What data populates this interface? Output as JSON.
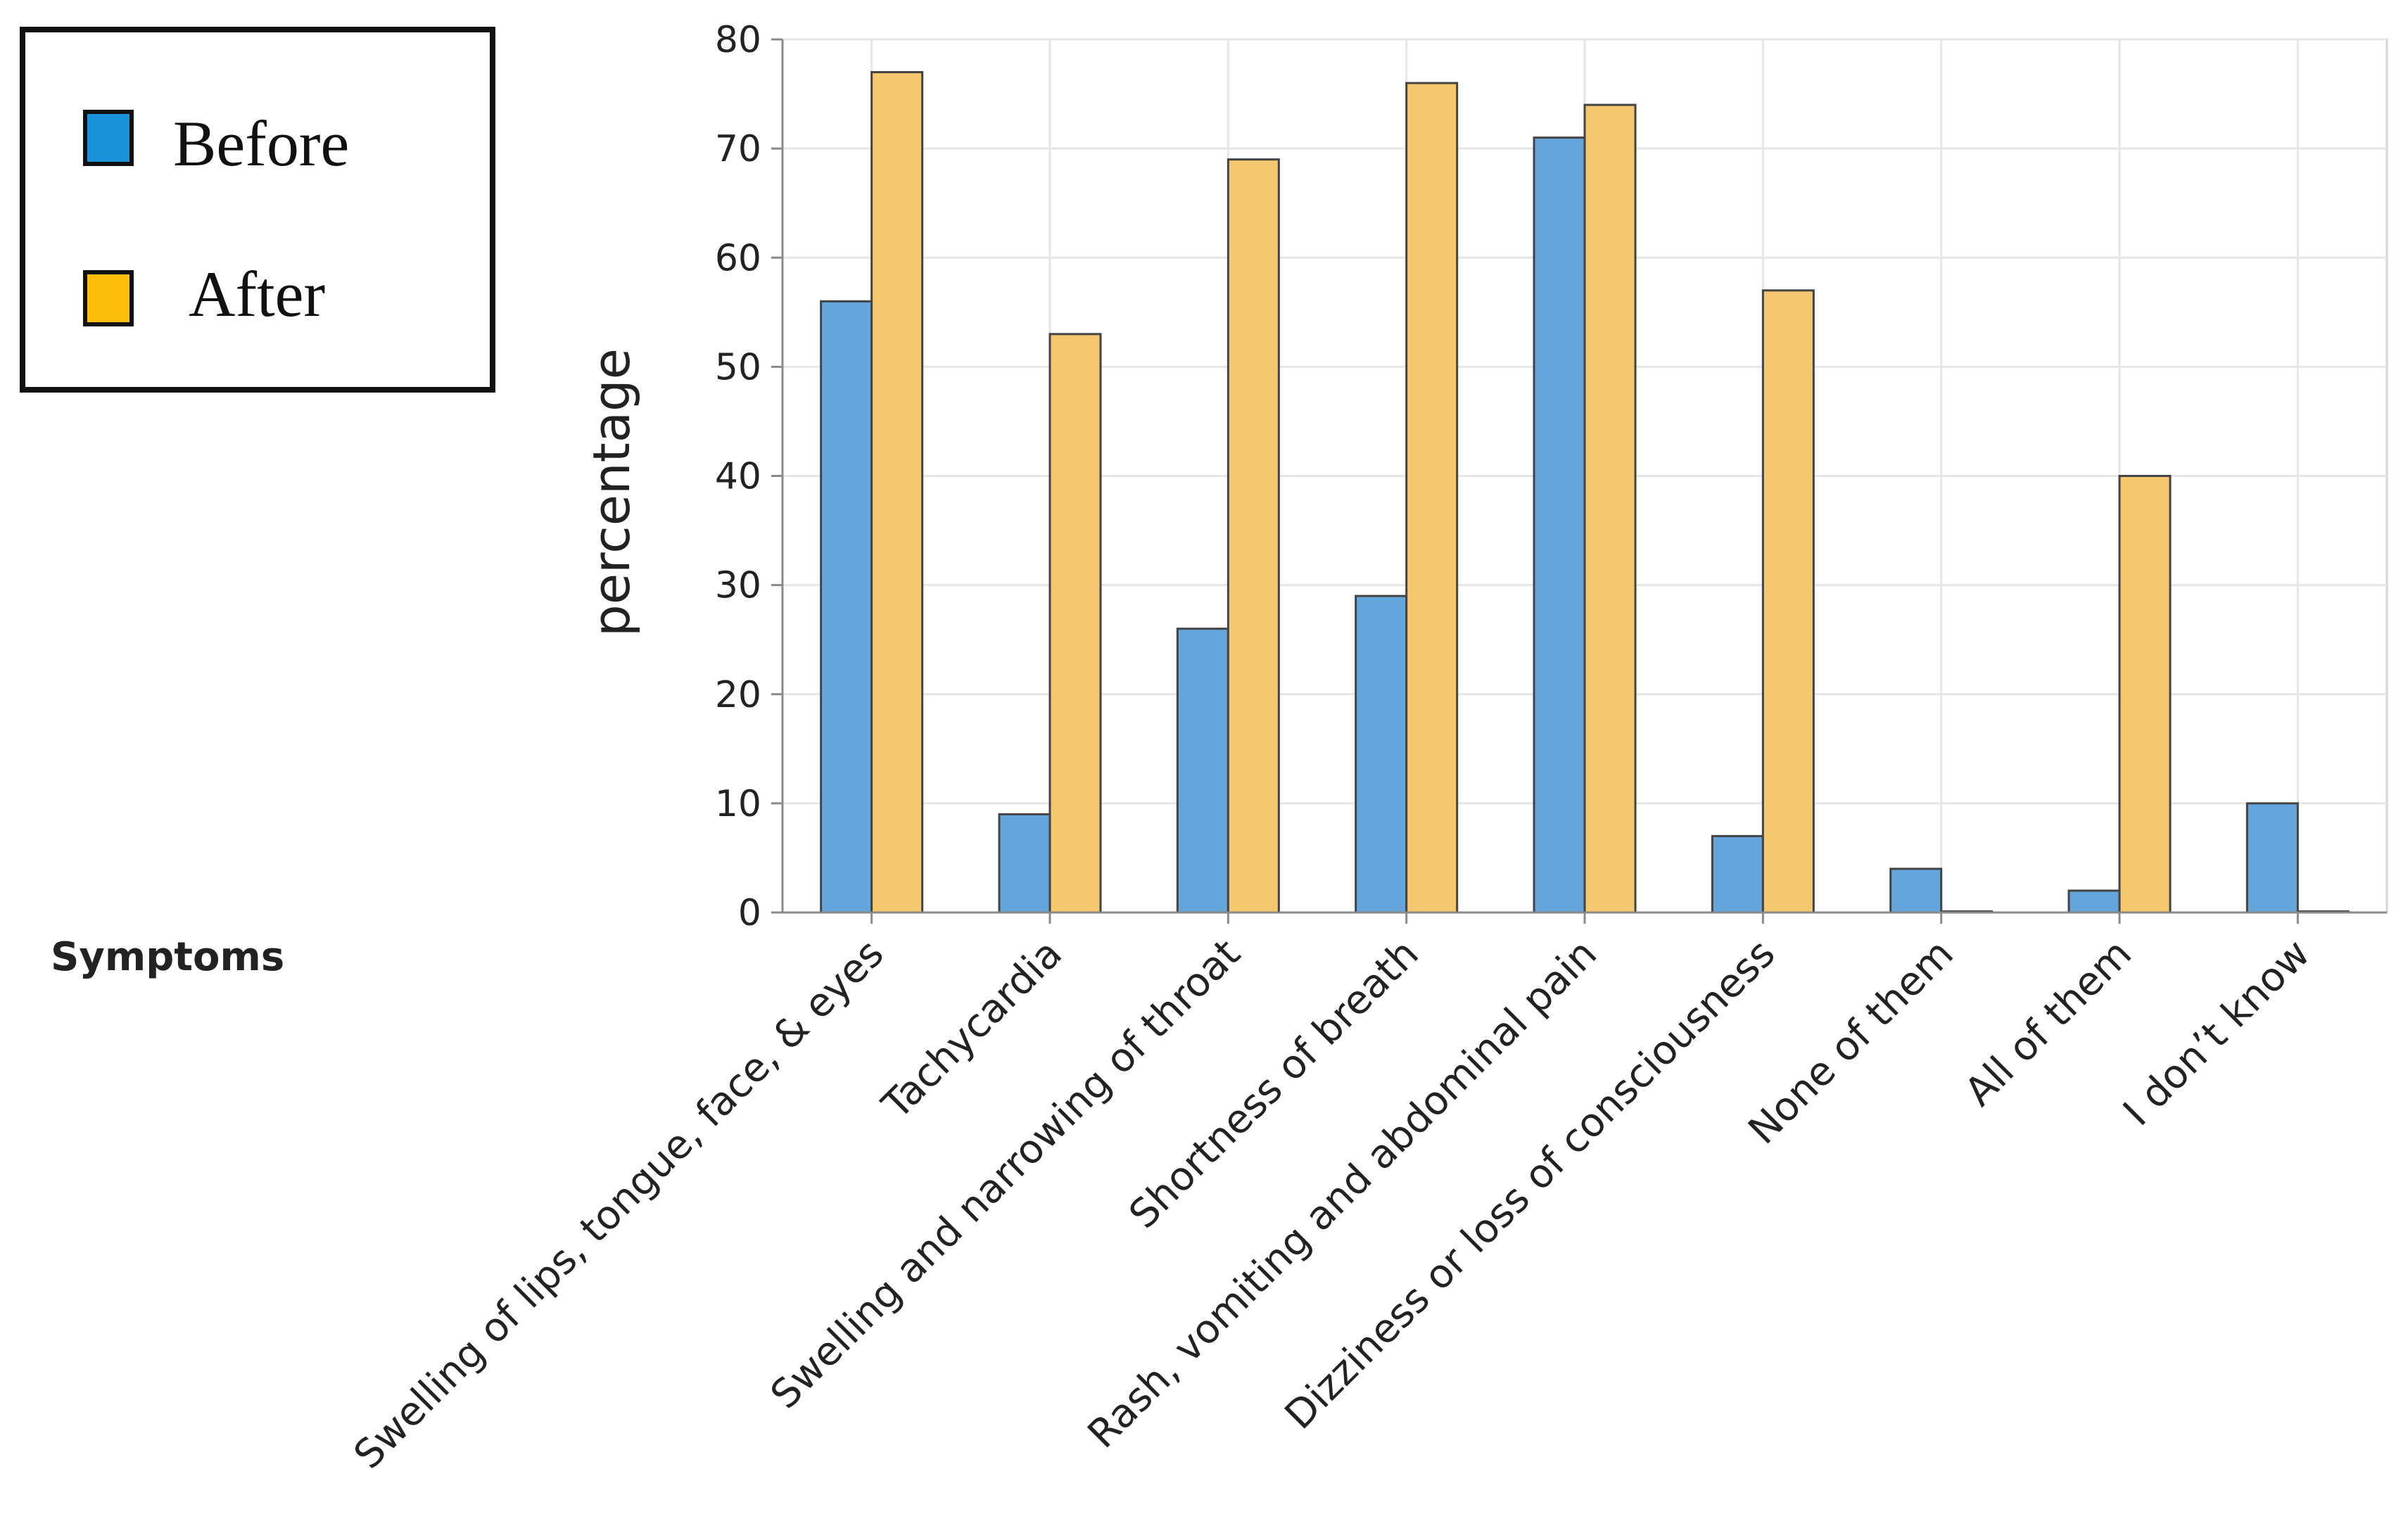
{
  "chart_data": {
    "type": "bar",
    "title": "",
    "xlabel": "Symptoms",
    "ylabel": "percentage",
    "ylim": [
      0,
      80
    ],
    "yticks": [
      0,
      10,
      20,
      30,
      40,
      50,
      60,
      70,
      80
    ],
    "grid": true,
    "legend_position": "top-left",
    "categories": [
      "Swelling of lips, tongue, face, & eyes",
      "Tachycardia",
      "Swelling and narrowing of throat",
      "Shortness of breath",
      "Rash, vomiting and abdominal pain",
      "Dizziness or loss of consciousness",
      "None of them",
      "All of them",
      "I don’t know"
    ],
    "series": [
      {
        "name": "Before",
        "color": "#64a6db",
        "legend_color": "#1a92da",
        "values": [
          56,
          9,
          26,
          29,
          71,
          7,
          4,
          2,
          10
        ]
      },
      {
        "name": "After",
        "color": "#f5c76e",
        "legend_color": "#fbbf0a",
        "values": [
          77,
          53,
          69,
          76,
          74,
          57,
          0,
          40,
          0
        ]
      }
    ]
  }
}
